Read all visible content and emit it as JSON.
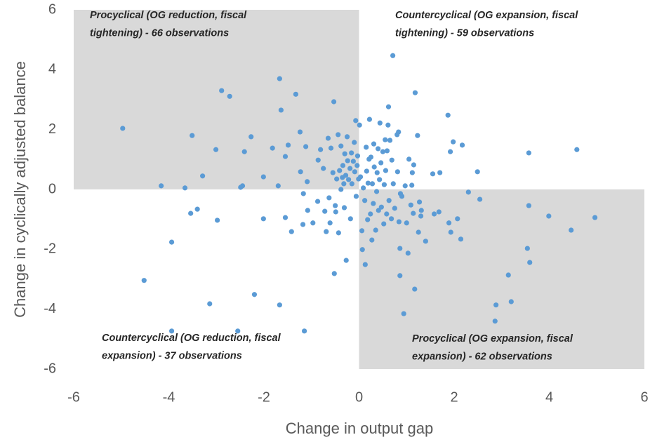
{
  "chart_data": {
    "type": "scatter",
    "x_label": "Change in output gap",
    "y_label": "Change in cyclically adjusted balance",
    "xlim": [
      -6,
      6
    ],
    "ylim": [
      -6,
      6
    ],
    "xticks": [
      -6,
      -4,
      -2,
      0,
      2,
      4,
      6
    ],
    "yticks": [
      -6,
      -4,
      -2,
      0,
      2,
      4,
      6
    ],
    "color": "#5b9bd5",
    "shade_color": "#d9d9d9",
    "shaded_quadrants": [
      "top-left",
      "bottom-right"
    ],
    "annotations": [
      {
        "quadrant": "top-left",
        "lines": [
          "Procyclical (OG reduction, fiscal",
          "tightening) - 66 observations"
        ]
      },
      {
        "quadrant": "top-right",
        "lines": [
          "Countercyclical (OG expansion,  fiscal",
          "tightening) - 59 observations"
        ]
      },
      {
        "quadrant": "bottom-left",
        "lines": [
          "Countercyclical (OG reduction, fiscal",
          "expansion)  - 37 observations"
        ]
      },
      {
        "quadrant": "bottom-right",
        "lines": [
          "Procyclical (OG expansion,  fiscal",
          "expansion) - 62 observations"
        ]
      }
    ],
    "x": [
      -4.97,
      -4.16,
      -3.66,
      -3.94,
      -4.52,
      -3.94,
      -3.51,
      -3.54,
      -3.4,
      -3.29,
      -3.14,
      -3.01,
      -2.98,
      -2.89,
      -2.72,
      -2.55,
      -2.45,
      -2.41,
      -2.49,
      -2.27,
      -2.2,
      -2.01,
      -2.01,
      -1.82,
      -1.7,
      -1.67,
      -1.64,
      -1.67,
      -1.55,
      -1.55,
      -1.49,
      -1.42,
      -1.33,
      -1.24,
      -1.23,
      -1.17,
      -1.18,
      -1.15,
      -1.12,
      -1.09,
      -1.08,
      -0.97,
      -0.86,
      -0.87,
      -0.81,
      -0.75,
      -0.72,
      -0.69,
      -0.65,
      -0.63,
      -0.61,
      -0.59,
      -0.55,
      -0.53,
      -0.52,
      -0.5,
      -0.49,
      -0.47,
      -0.44,
      -0.43,
      -0.41,
      -0.38,
      -0.38,
      -0.35,
      -0.34,
      -0.32,
      -0.31,
      -0.3,
      -0.28,
      -0.27,
      -0.25,
      -0.24,
      -0.22,
      -0.19,
      -0.18,
      -0.16,
      -0.15,
      -0.12,
      -0.1,
      -0.09,
      -0.07,
      -0.06,
      -0.04,
      -0.03,
      -0.01,
      0.01,
      0.03,
      0.06,
      0.07,
      0.09,
      0.12,
      0.13,
      0.15,
      0.16,
      0.18,
      0.19,
      0.21,
      0.22,
      0.24,
      0.25,
      0.27,
      0.28,
      0.3,
      0.31,
      0.32,
      0.35,
      0.37,
      0.38,
      0.4,
      0.41,
      0.43,
      0.44,
      0.46,
      0.47,
      0.5,
      0.52,
      0.53,
      0.55,
      0.56,
      0.58,
      0.59,
      0.61,
      0.62,
      0.63,
      0.65,
      0.68,
      0.69,
      0.71,
      0.72,
      0.75,
      0.8,
      0.81,
      0.83,
      0.84,
      0.86,
      0.86,
      0.87,
      0.9,
      0.94,
      0.97,
      1.0,
      1.03,
      1.05,
      1.09,
      1.11,
      1.12,
      1.14,
      1.15,
      1.17,
      1.18,
      1.23,
      1.25,
      1.27,
      1.3,
      1.31,
      1.4,
      1.55,
      1.58,
      1.68,
      1.7,
      1.87,
      1.89,
      1.92,
      1.93,
      1.98,
      2.07,
      2.14,
      2.17,
      2.3,
      2.49,
      2.54,
      2.88,
      2.86,
      3.14,
      3.2,
      3.54,
      3.57,
      3.57,
      3.59,
      3.99,
      4.46,
      4.58,
      4.96
    ],
    "values": [
      2.04,
      0.12,
      0.05,
      -1.76,
      -3.04,
      -4.73,
      1.8,
      -0.8,
      -0.66,
      0.45,
      -3.82,
      1.33,
      -1.03,
      3.3,
      3.11,
      -4.73,
      0.12,
      1.26,
      0.07,
      1.76,
      -3.51,
      0.42,
      -0.98,
      1.38,
      0.12,
      3.7,
      2.65,
      -3.86,
      1.1,
      -0.94,
      1.48,
      -1.41,
      3.18,
      1.92,
      0.59,
      -0.14,
      -1.17,
      -4.73,
      1.43,
      0.26,
      -0.7,
      -1.12,
      0.98,
      -0.4,
      1.33,
      0.7,
      -0.73,
      -1.41,
      1.71,
      -0.28,
      -1.12,
      1.38,
      0.56,
      2.93,
      -2.81,
      -0.54,
      -0.75,
      0.35,
      1.83,
      -1.45,
      0.63,
      0.0,
      1.45,
      0.4,
      0.8,
      0.19,
      -0.61,
      1.19,
      0.47,
      -2.37,
      1.76,
      0.96,
      0.33,
      0.7,
      -0.98,
      1.22,
      0.19,
      0.94,
      1.57,
      0.59,
      2.3,
      -0.23,
      0.8,
      1.12,
      0.35,
      2.15,
      0.42,
      -1.38,
      -2.01,
      0.05,
      -0.37,
      -2.51,
      1.41,
      0.61,
      -1.01,
      0.21,
      1.01,
      2.34,
      -0.82,
      1.08,
      -1.69,
      0.19,
      -0.47,
      1.52,
      0.75,
      -1.36,
      -0.07,
      0.56,
      1.36,
      -0.7,
      0.33,
      2.22,
      0.89,
      -0.59,
      1.26,
      -1.15,
      0.16,
      1.66,
      0.63,
      -0.82,
      1.29,
      2.15,
      2.76,
      -0.37,
      1.64,
      -0.98,
      0.98,
      4.47,
      0.19,
      -0.63,
      1.83,
      0.59,
      1.92,
      -1.08,
      -1.97,
      -2.88,
      -0.14,
      -0.23,
      -4.15,
      0.12,
      -1.12,
      -2.13,
      1.01,
      -0.52,
      0.14,
      0.56,
      -0.8,
      0.82,
      -3.33,
      3.23,
      1.8,
      -1.43,
      -0.42,
      -0.89,
      -0.7,
      -1.73,
      0.52,
      -0.82,
      -0.75,
      0.56,
      2.48,
      -1.12,
      1.26,
      -1.43,
      1.59,
      -0.98,
      -1.66,
      1.48,
      -0.09,
      0.59,
      -0.33,
      -3.86,
      -4.4,
      -2.86,
      -3.75,
      -1.97,
      1.22,
      -0.54,
      -2.44,
      -0.89,
      -1.36,
      1.33,
      -0.94
    ]
  }
}
